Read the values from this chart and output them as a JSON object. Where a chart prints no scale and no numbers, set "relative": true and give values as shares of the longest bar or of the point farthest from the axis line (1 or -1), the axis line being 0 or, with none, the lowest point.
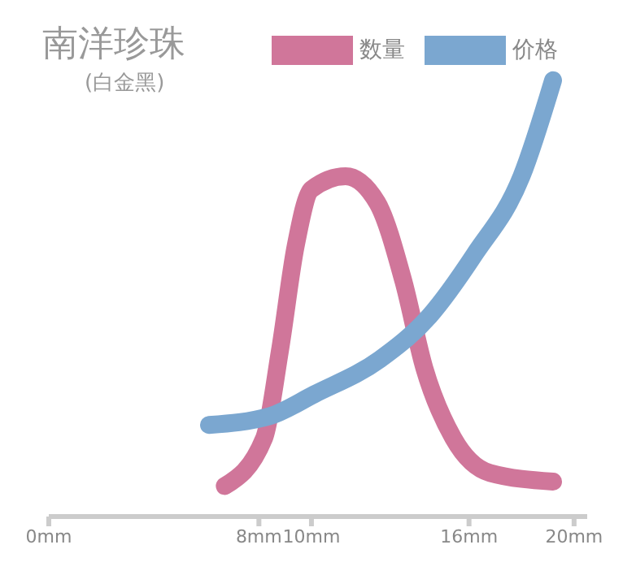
{
  "chart_data": {
    "type": "line",
    "title": "南洋珍珠",
    "subtitle": "(白金黑)",
    "relative": true,
    "xlim": [
      0,
      20.5
    ],
    "xticks": [
      {
        "value": 0,
        "label": "0mm"
      },
      {
        "value": 8,
        "label": "8mm"
      },
      {
        "value": 10,
        "label": "10mm"
      },
      {
        "value": 16,
        "label": "16mm"
      },
      {
        "value": 20,
        "label": "20mm"
      }
    ],
    "series": [
      {
        "name": "数量",
        "color": "#d0769a",
        "x": [
          6.7,
          8.2,
          8.8,
          9.4,
          10,
          11.3,
          12.5,
          13.5,
          14.3,
          15.4,
          16.8,
          19.2
        ],
        "values": [
          0.07,
          0.18,
          0.38,
          0.62,
          0.75,
          0.78,
          0.72,
          0.54,
          0.34,
          0.18,
          0.1,
          0.08
        ]
      },
      {
        "name": "价格",
        "color": "#7ba7d0",
        "x": [
          6.1,
          8.4,
          10.1,
          12.6,
          14.5,
          16.2,
          18,
          19.2
        ],
        "values": [
          0.21,
          0.23,
          0.28,
          0.36,
          0.46,
          0.6,
          0.78,
          1.0
        ]
      }
    ],
    "grid": false,
    "legend": "top right",
    "marker": "none",
    "line_style": "solid"
  }
}
